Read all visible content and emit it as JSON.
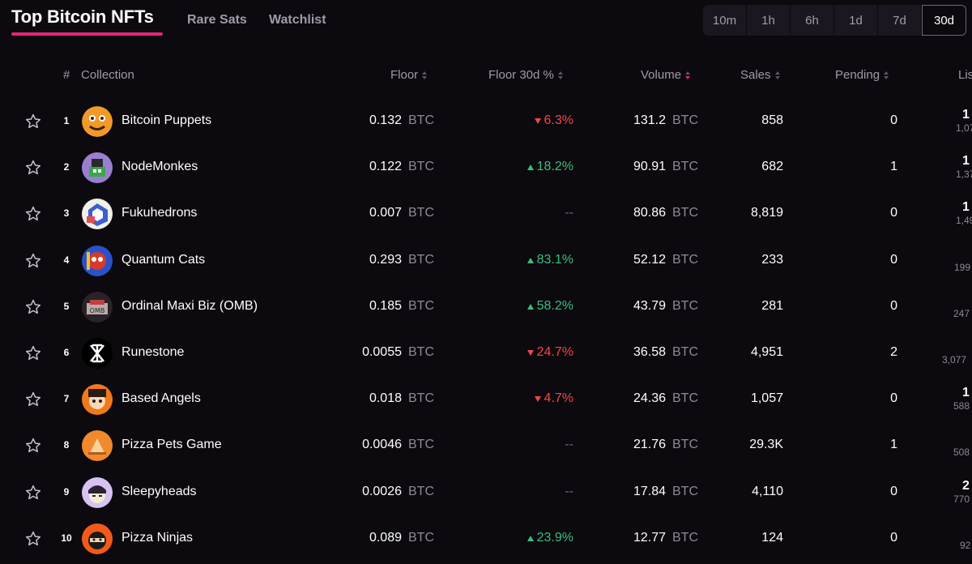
{
  "header": {
    "title": "Top Bitcoin NFTs",
    "tabs": [
      "Rare Sats",
      "Watchlist"
    ],
    "periods": [
      "10m",
      "1h",
      "6h",
      "1d",
      "7d",
      "30d"
    ],
    "active_period": "30d"
  },
  "table": {
    "columns": {
      "rank": "#",
      "collection": "Collection",
      "floor": "Floor",
      "floor_pct": "Floor 30d %",
      "volume": "Volume",
      "sales": "Sales",
      "pending": "Pending",
      "listed": "Lis"
    },
    "rows": [
      {
        "rank": "1",
        "name": "Bitcoin Puppets",
        "floor": "0.132",
        "unit": "BTC",
        "pct": "6.3%",
        "dir": "down",
        "volume": "131.2",
        "sales": "858",
        "pending": "0",
        "listed_top": "1",
        "listed_sub": "1,07"
      },
      {
        "rank": "2",
        "name": "NodeMonkes",
        "floor": "0.122",
        "unit": "BTC",
        "pct": "18.2%",
        "dir": "up",
        "volume": "90.91",
        "sales": "682",
        "pending": "1",
        "listed_top": "1",
        "listed_sub": "1,37"
      },
      {
        "rank": "3",
        "name": "Fukuhedrons",
        "floor": "0.007",
        "unit": "BTC",
        "pct": "--",
        "dir": "none",
        "volume": "80.86",
        "sales": "8,819",
        "pending": "0",
        "listed_top": "1",
        "listed_sub": "1,49"
      },
      {
        "rank": "4",
        "name": "Quantum Cats",
        "floor": "0.293",
        "unit": "BTC",
        "pct": "83.1%",
        "dir": "up",
        "volume": "52.12",
        "sales": "233",
        "pending": "0",
        "listed_top": "",
        "listed_sub": "199"
      },
      {
        "rank": "5",
        "name": "Ordinal Maxi Biz (OMB)",
        "floor": "0.185",
        "unit": "BTC",
        "pct": "58.2%",
        "dir": "up",
        "volume": "43.79",
        "sales": "281",
        "pending": "0",
        "listed_top": "",
        "listed_sub": "247"
      },
      {
        "rank": "6",
        "name": "Runestone",
        "floor": "0.0055",
        "unit": "BTC",
        "pct": "24.7%",
        "dir": "down",
        "volume": "36.58",
        "sales": "4,951",
        "pending": "2",
        "listed_top": "",
        "listed_sub": "3,077"
      },
      {
        "rank": "7",
        "name": "Based Angels",
        "floor": "0.018",
        "unit": "BTC",
        "pct": "4.7%",
        "dir": "down",
        "volume": "24.36",
        "sales": "1,057",
        "pending": "0",
        "listed_top": "1",
        "listed_sub": "588"
      },
      {
        "rank": "8",
        "name": "Pizza Pets Game",
        "floor": "0.0046",
        "unit": "BTC",
        "pct": "--",
        "dir": "none",
        "volume": "21.76",
        "sales": "29.3K",
        "pending": "1",
        "listed_top": "",
        "listed_sub": "508"
      },
      {
        "rank": "9",
        "name": "Sleepyheads",
        "floor": "0.0026",
        "unit": "BTC",
        "pct": "--",
        "dir": "none",
        "volume": "17.84",
        "sales": "4,110",
        "pending": "0",
        "listed_top": "2",
        "listed_sub": "770"
      },
      {
        "rank": "10",
        "name": "Pizza Ninjas",
        "floor": "0.089",
        "unit": "BTC",
        "pct": "23.9%",
        "dir": "up",
        "volume": "12.77",
        "sales": "124",
        "pending": "0",
        "listed_top": "",
        "listed_sub": "92"
      }
    ]
  },
  "colors": {
    "accent": "#e42575",
    "up": "#39c07b",
    "down": "#f04848",
    "muted": "#a19ba8",
    "background": "#0c090f"
  },
  "avatars": [
    {
      "icon": "bitcoin-puppets-avatar",
      "bg": "#f19a2a",
      "fg": "#3b2410"
    },
    {
      "icon": "nodemonkes-avatar",
      "bg": "#9a7fd1",
      "fg": "#2a2a2a"
    },
    {
      "icon": "fukuhedrons-avatar",
      "bg": "#f2efe9",
      "fg": "#3b5fd0"
    },
    {
      "icon": "quantum-cats-avatar",
      "bg": "#2a52c8",
      "fg": "#d83a2a"
    },
    {
      "icon": "omb-avatar",
      "bg": "#2a2226",
      "fg": "#d8d2cc"
    },
    {
      "icon": "runestone-avatar",
      "bg": "#000000",
      "fg": "#ffffff"
    },
    {
      "icon": "based-angels-avatar",
      "bg": "#f07a1a",
      "fg": "#2a1a10"
    },
    {
      "icon": "pizza-pets-avatar",
      "bg": "#f08a2a",
      "fg": "#f5d2a0"
    },
    {
      "icon": "sleepyheads-avatar",
      "bg": "#d8c2f2",
      "fg": "#2a2230"
    },
    {
      "icon": "pizza-ninjas-avatar",
      "bg": "#f25a1a",
      "fg": "#1a1a1a"
    }
  ]
}
